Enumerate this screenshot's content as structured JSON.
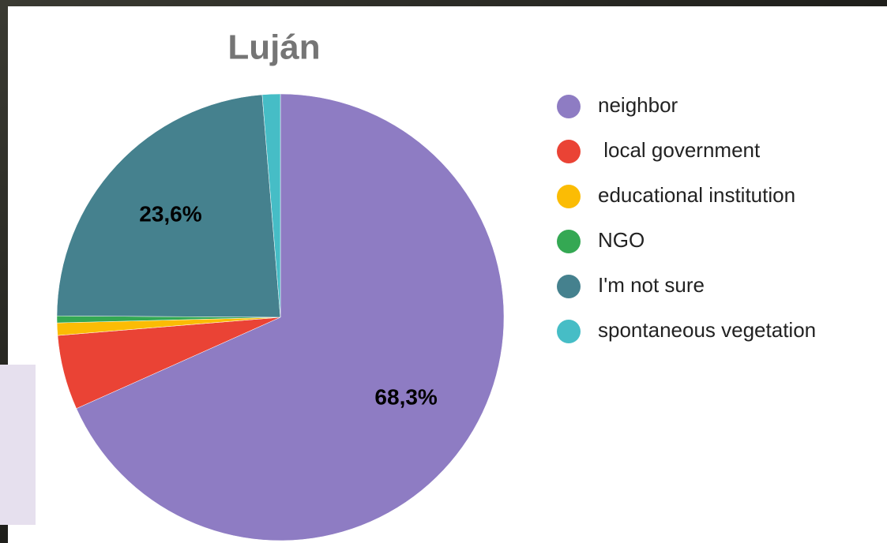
{
  "chart_data": {
    "type": "pie",
    "title": "Luján",
    "categories": [
      "neighbor",
      " local government",
      "educational institution",
      "NGO",
      "I'm not sure",
      "spontaneous vegetation"
    ],
    "values": [
      68.3,
      5.4,
      0.9,
      0.5,
      23.6,
      1.3
    ],
    "value_labels": [
      "68,3%",
      null,
      null,
      null,
      "23,6%",
      null
    ],
    "colors": [
      "#8e7cc3",
      "#ea4335",
      "#fbbc04",
      "#34a853",
      "#45818e",
      "#46bdc6"
    ],
    "legend": "right"
  }
}
